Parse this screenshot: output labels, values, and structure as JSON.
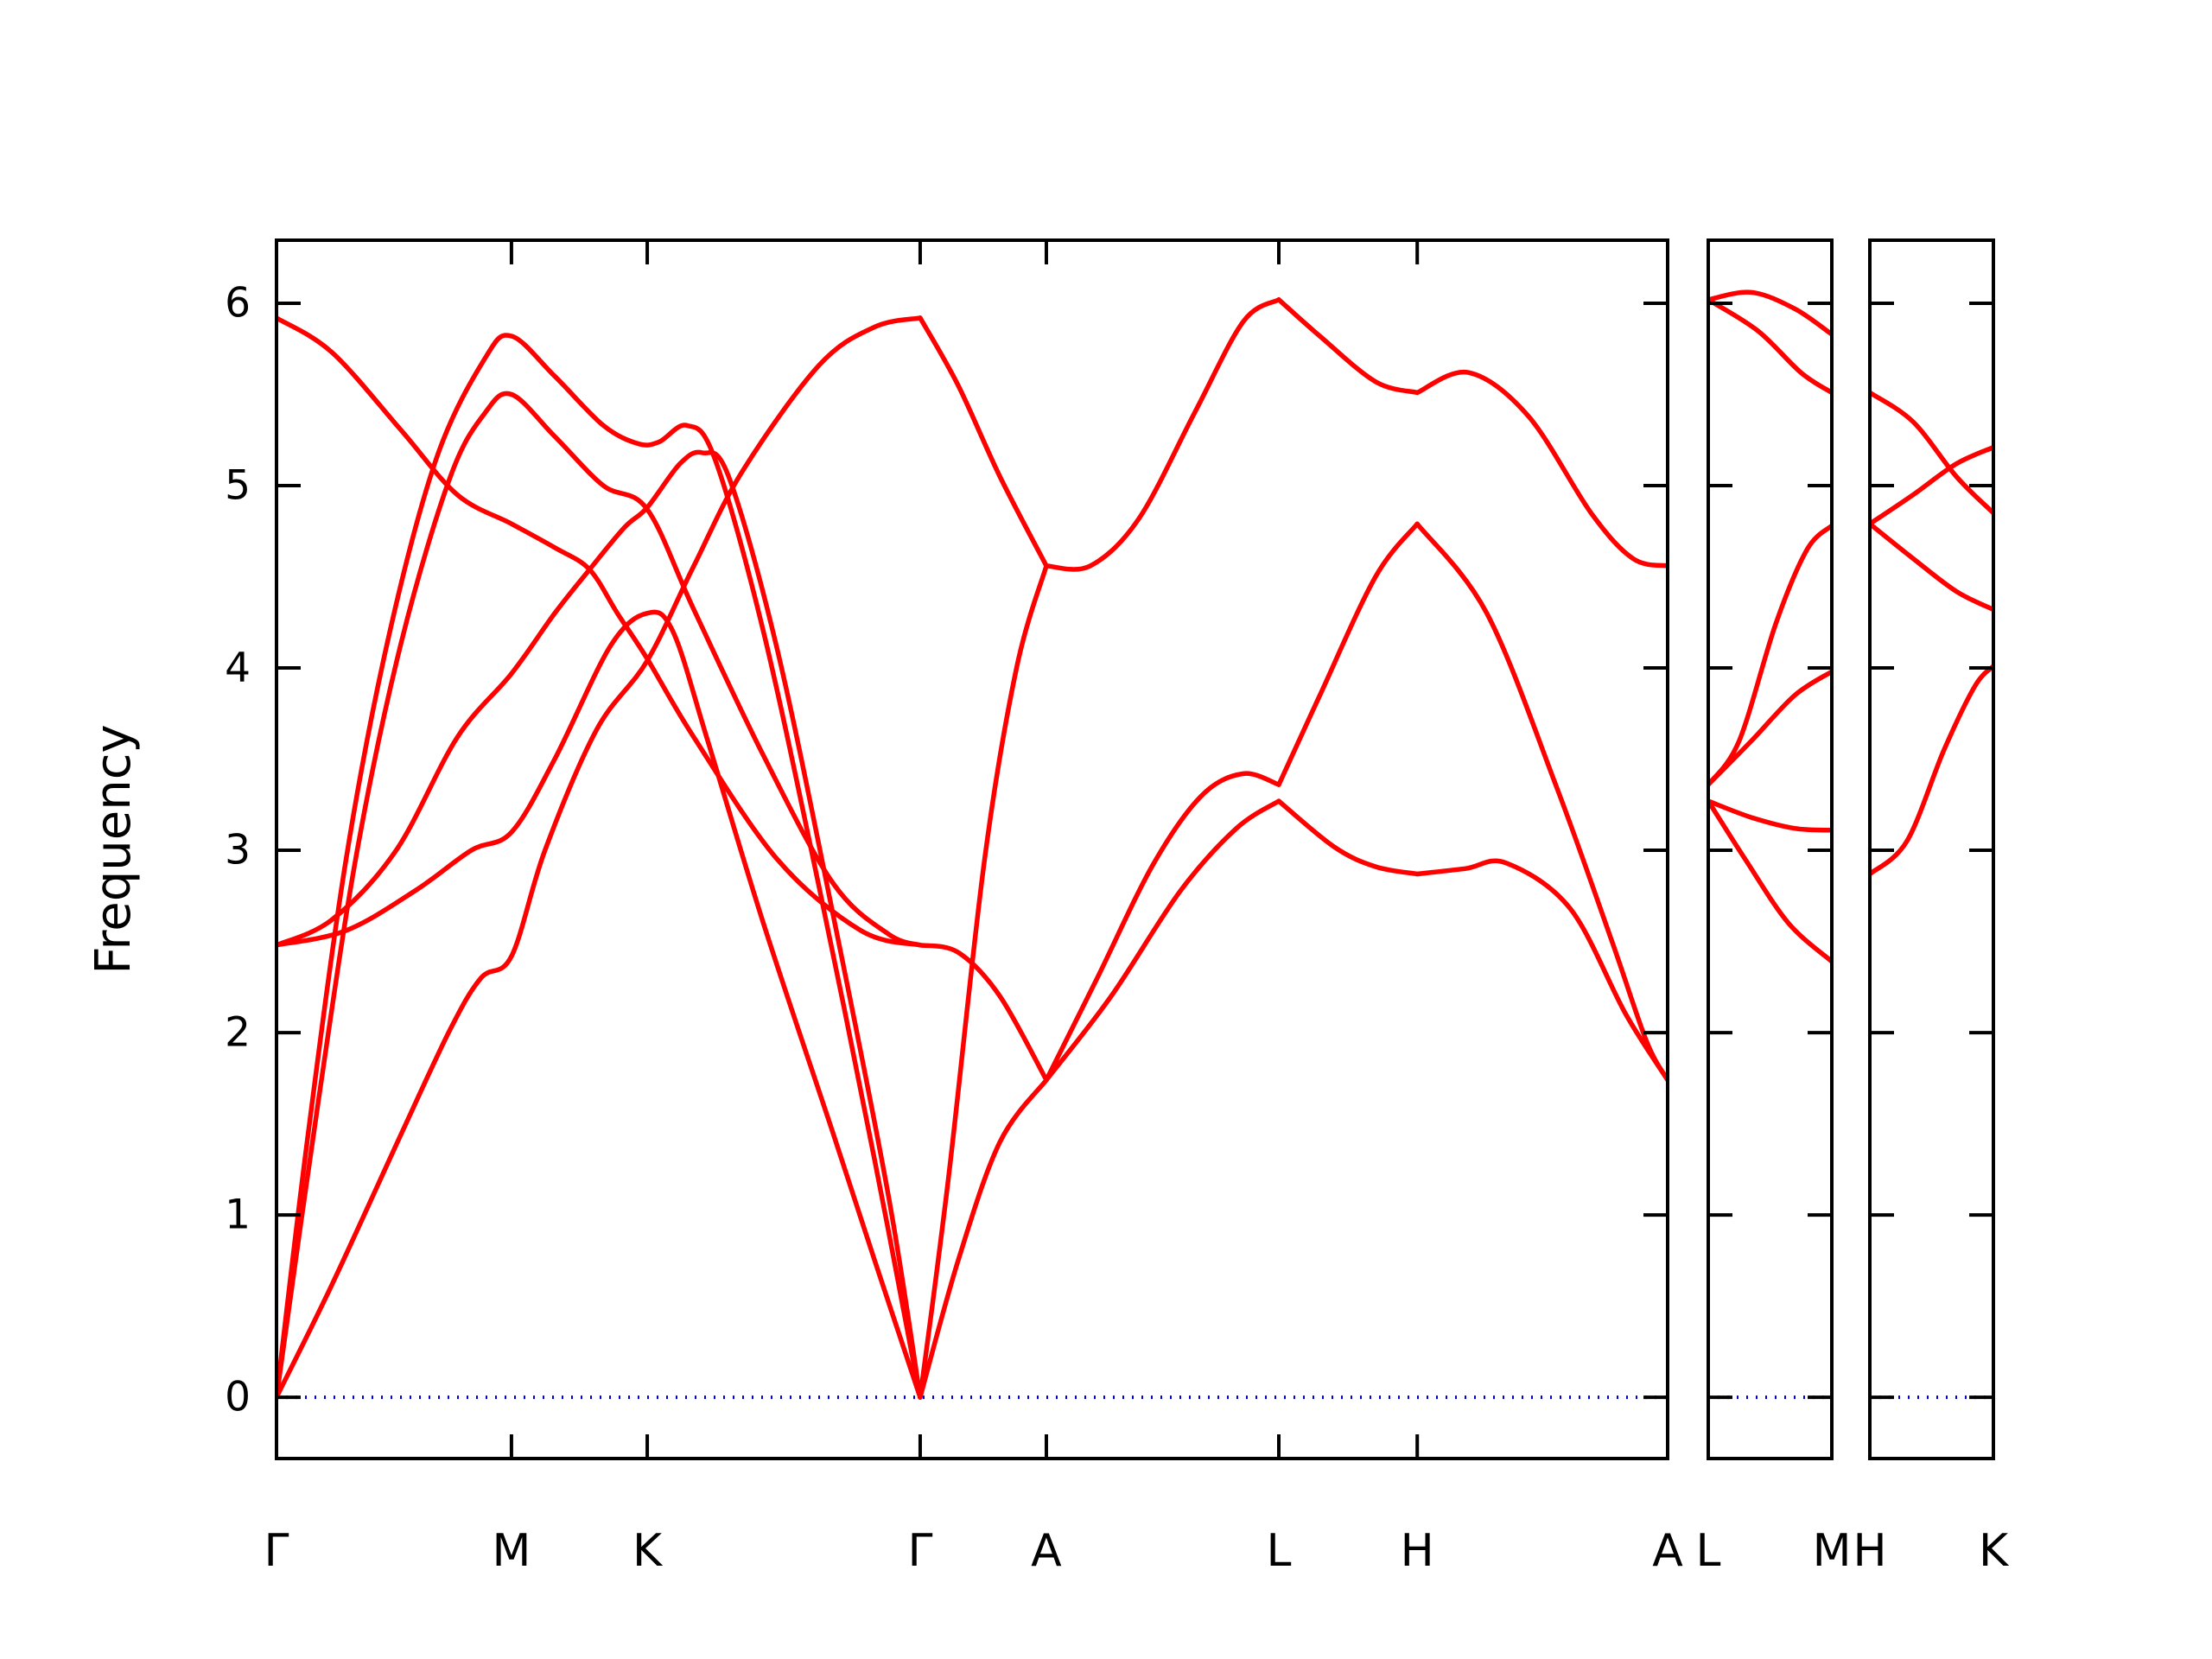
{
  "figure": {
    "background": "#ffffff",
    "description": "Phonon band structure plot with three panels"
  },
  "chart_data": {
    "type": "line",
    "title": "",
    "xlabel": "",
    "ylabel": "Frequency",
    "yticks": [
      0,
      1,
      2,
      3,
      4,
      5,
      6
    ],
    "ylim": [
      -0.336,
      6.346
    ],
    "grid": false,
    "legend": null,
    "zero_line_value": 0,
    "colors": {
      "band": "#ff0000",
      "zero_line": "#0000cc",
      "axis": "#000000"
    },
    "panels": [
      {
        "name": "main",
        "x_stops": [
          {
            "label": "Γ",
            "k": 0.0
          },
          {
            "label": "M",
            "k": 0.1689
          },
          {
            "label": "K",
            "k": 0.2665
          },
          {
            "label": "Γ",
            "k": 0.4627
          },
          {
            "label": "A",
            "k": 0.5534
          },
          {
            "label": "L",
            "k": 0.7205
          },
          {
            "label": "H",
            "k": 0.82
          },
          {
            "label": "A",
            "k": 1.0
          }
        ],
        "lines": [
          [
            [
              0,
              0
            ],
            [
              0.04,
              0.62
            ],
            [
              0.09,
              1.45
            ],
            [
              0.125,
              2.02
            ],
            [
              0.147,
              2.3
            ],
            [
              0.169,
              2.42
            ],
            [
              0.193,
              3.0
            ],
            [
              0.23,
              3.66
            ],
            [
              0.2665,
              4.04
            ],
            [
              0.3,
              4.56
            ],
            [
              0.335,
              5.08
            ],
            [
              0.39,
              5.66
            ],
            [
              0.43,
              5.87
            ],
            [
              0.4627,
              5.92
            ]
          ],
          [
            [
              0,
              0
            ],
            [
              0.03,
              1.62
            ],
            [
              0.058,
              3.0
            ],
            [
              0.09,
              4.15
            ],
            [
              0.125,
              5.05
            ],
            [
              0.15,
              5.4
            ],
            [
              0.169,
              5.5
            ],
            [
              0.2,
              5.27
            ],
            [
              0.235,
              5.0
            ],
            [
              0.2665,
              4.87
            ],
            [
              0.3,
              4.32
            ],
            [
              0.35,
              3.52
            ],
            [
              0.4,
              2.82
            ],
            [
              0.44,
              2.54
            ],
            [
              0.4627,
              2.48
            ]
          ],
          [
            [
              0,
              0
            ],
            [
              0.022,
              1.4
            ],
            [
              0.05,
              2.95
            ],
            [
              0.08,
              4.15
            ],
            [
              0.115,
              5.15
            ],
            [
              0.15,
              5.7
            ],
            [
              0.169,
              5.82
            ],
            [
              0.2,
              5.6
            ],
            [
              0.235,
              5.33
            ],
            [
              0.26,
              5.23
            ],
            [
              0.275,
              5.24
            ],
            [
              0.295,
              5.33
            ],
            [
              0.315,
              5.15
            ],
            [
              0.35,
              4.2
            ],
            [
              0.39,
              2.8
            ],
            [
              0.43,
              1.3
            ],
            [
              0.4627,
              0
            ]
          ],
          [
            [
              0,
              2.48
            ],
            [
              0.05,
              2.56
            ],
            [
              0.1,
              2.78
            ],
            [
              0.14,
              3.0
            ],
            [
              0.169,
              3.1
            ],
            [
              0.2,
              3.5
            ],
            [
              0.24,
              4.12
            ],
            [
              0.2665,
              4.3
            ],
            [
              0.285,
              4.2
            ],
            [
              0.31,
              3.6
            ],
            [
              0.35,
              2.6
            ],
            [
              0.4,
              1.45
            ],
            [
              0.43,
              0.75
            ],
            [
              0.4627,
              0
            ]
          ],
          [
            [
              0,
              2.48
            ],
            [
              0.04,
              2.62
            ],
            [
              0.086,
              3.0
            ],
            [
              0.13,
              3.62
            ],
            [
              0.169,
              3.97
            ],
            [
              0.2,
              4.3
            ],
            [
              0.225,
              4.54
            ],
            [
              0.25,
              4.77
            ],
            [
              0.2665,
              4.88
            ],
            [
              0.29,
              5.12
            ],
            [
              0.306,
              5.18
            ],
            [
              0.325,
              5.05
            ],
            [
              0.36,
              4.1
            ],
            [
              0.4,
              2.65
            ],
            [
              0.44,
              1.1
            ],
            [
              0.4627,
              0
            ]
          ],
          [
            [
              0,
              5.92
            ],
            [
              0.04,
              5.73
            ],
            [
              0.09,
              5.3
            ],
            [
              0.13,
              4.95
            ],
            [
              0.169,
              4.79
            ],
            [
              0.2,
              4.66
            ],
            [
              0.225,
              4.54
            ],
            [
              0.245,
              4.3
            ],
            [
              0.2665,
              4.05
            ],
            [
              0.3,
              3.62
            ],
            [
              0.36,
              2.95
            ],
            [
              0.42,
              2.56
            ],
            [
              0.4627,
              2.48
            ]
          ],
          [
            [
              0.4627,
              0
            ],
            [
              0.483,
              1.2
            ],
            [
              0.509,
              2.95
            ],
            [
              0.532,
              4.0
            ],
            [
              0.5534,
              4.56
            ]
          ],
          [
            [
              0.4627,
              0
            ],
            [
              0.49,
              0.75
            ],
            [
              0.52,
              1.4
            ],
            [
              0.5534,
              1.74
            ]
          ],
          [
            [
              0.4627,
              2.48
            ],
            [
              0.49,
              2.44
            ],
            [
              0.52,
              2.2
            ],
            [
              0.5534,
              1.74
            ]
          ],
          [
            [
              0.4627,
              5.92
            ],
            [
              0.49,
              5.55
            ],
            [
              0.52,
              5.05
            ],
            [
              0.5534,
              4.56
            ]
          ],
          [
            [
              0.5534,
              4.56
            ],
            [
              0.585,
              4.56
            ],
            [
              0.62,
              4.82
            ],
            [
              0.66,
              5.4
            ],
            [
              0.695,
              5.9
            ],
            [
              0.7205,
              6.02
            ]
          ],
          [
            [
              0.5534,
              1.74
            ],
            [
              0.59,
              2.3
            ],
            [
              0.63,
              2.92
            ],
            [
              0.665,
              3.3
            ],
            [
              0.695,
              3.42
            ],
            [
              0.7205,
              3.36
            ]
          ],
          [
            [
              0.5534,
              1.74
            ],
            [
              0.6,
              2.2
            ],
            [
              0.65,
              2.78
            ],
            [
              0.69,
              3.12
            ],
            [
              0.7205,
              3.27
            ]
          ],
          [
            [
              0.7205,
              6.02
            ],
            [
              0.75,
              5.82
            ],
            [
              0.79,
              5.57
            ],
            [
              0.82,
              5.51
            ]
          ],
          [
            [
              0.7205,
              3.36
            ],
            [
              0.75,
              3.85
            ],
            [
              0.79,
              4.5
            ],
            [
              0.82,
              4.79
            ]
          ],
          [
            [
              0.7205,
              3.27
            ],
            [
              0.76,
              3.02
            ],
            [
              0.79,
              2.91
            ],
            [
              0.82,
              2.87
            ]
          ],
          [
            [
              0.82,
              5.51
            ],
            [
              0.857,
              5.62
            ],
            [
              0.9,
              5.38
            ],
            [
              0.945,
              4.85
            ],
            [
              0.975,
              4.6
            ],
            [
              1.0,
              4.56
            ]
          ],
          [
            [
              0.82,
              4.79
            ],
            [
              0.87,
              4.3
            ],
            [
              0.92,
              3.35
            ],
            [
              0.96,
              2.5
            ],
            [
              0.985,
              1.95
            ],
            [
              1.0,
              1.74
            ]
          ],
          [
            [
              0.82,
              2.87
            ],
            [
              0.855,
              2.9
            ],
            [
              0.884,
              2.93
            ],
            [
              0.93,
              2.68
            ],
            [
              0.97,
              2.1
            ],
            [
              1.0,
              1.74
            ]
          ]
        ]
      },
      {
        "name": "L-M",
        "x_stops": [
          {
            "label": "L",
            "k": 0.0
          },
          {
            "label": "M",
            "k": 1.0
          }
        ],
        "lines": [
          [
            [
              0,
              6.02
            ],
            [
              0.35,
              6.06
            ],
            [
              0.7,
              5.97
            ],
            [
              1,
              5.83
            ]
          ],
          [
            [
              0,
              6.02
            ],
            [
              0.4,
              5.85
            ],
            [
              0.75,
              5.62
            ],
            [
              1,
              5.51
            ]
          ],
          [
            [
              0,
              3.36
            ],
            [
              0.25,
              3.6
            ],
            [
              0.55,
              4.25
            ],
            [
              0.8,
              4.65
            ],
            [
              1,
              4.78
            ]
          ],
          [
            [
              0,
              3.36
            ],
            [
              0.35,
              3.6
            ],
            [
              0.7,
              3.85
            ],
            [
              1,
              3.98
            ]
          ],
          [
            [
              0,
              3.27
            ],
            [
              0.35,
              3.18
            ],
            [
              0.7,
              3.12
            ],
            [
              1,
              3.11
            ]
          ],
          [
            [
              0,
              3.27
            ],
            [
              0.3,
              2.95
            ],
            [
              0.65,
              2.6
            ],
            [
              1,
              2.39
            ]
          ]
        ]
      },
      {
        "name": "H-K",
        "x_stops": [
          {
            "label": "H",
            "k": 0.0
          },
          {
            "label": "K",
            "k": 1.0
          }
        ],
        "lines": [
          [
            [
              0,
              5.51
            ],
            [
              0.35,
              5.35
            ],
            [
              0.7,
              5.05
            ],
            [
              1,
              4.85
            ]
          ],
          [
            [
              0,
              4.79
            ],
            [
              0.35,
              4.95
            ],
            [
              0.7,
              5.12
            ],
            [
              1,
              5.21
            ]
          ],
          [
            [
              0,
              4.79
            ],
            [
              0.35,
              4.6
            ],
            [
              0.7,
              4.42
            ],
            [
              1,
              4.32
            ]
          ],
          [
            [
              0,
              2.87
            ],
            [
              0.3,
              3.05
            ],
            [
              0.6,
              3.55
            ],
            [
              0.85,
              3.9
            ],
            [
              1,
              4.01
            ]
          ]
        ]
      }
    ]
  }
}
